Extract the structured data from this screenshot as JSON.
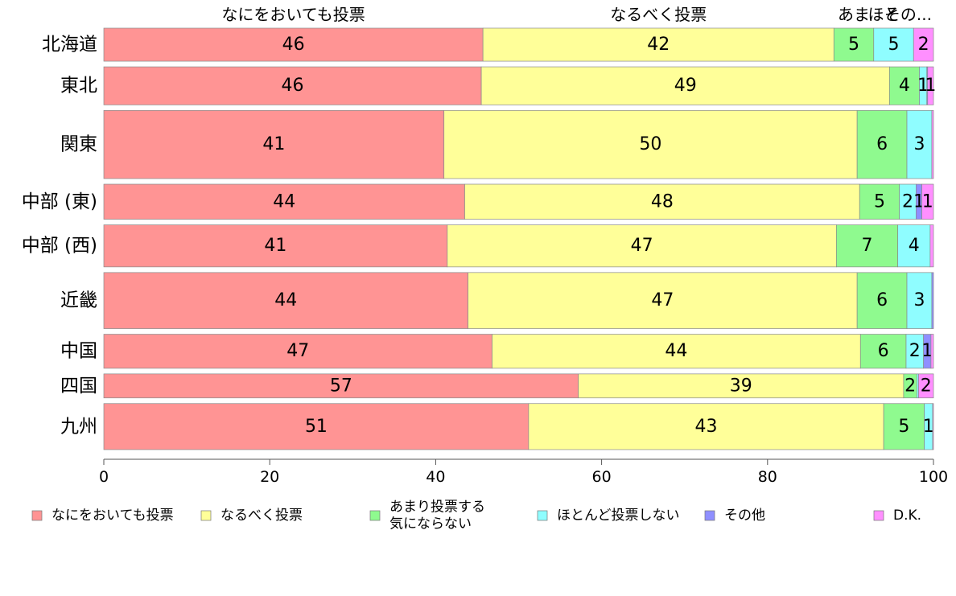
{
  "chart_data": {
    "type": "bar",
    "orientation": "horizontal",
    "stacked": true,
    "xlim": [
      0,
      100
    ],
    "xticks": [
      0,
      20,
      40,
      60,
      80,
      100
    ],
    "legend_position": "bottom",
    "categories": [
      "北海道",
      "東北",
      "関東",
      "中部 (東)",
      "中部 (西)",
      "近畿",
      "中国",
      "四国",
      "九州"
    ],
    "category_weights": [
      0.33,
      0.38,
      0.68,
      0.35,
      0.42,
      0.56,
      0.34,
      0.24,
      0.46
    ],
    "top_labels": [
      "なにをおいても投票",
      "なるべく投票",
      "あま",
      "ほと",
      "その..."
    ],
    "series": [
      {
        "name": "なにをおいても投票",
        "legend": [
          "なにをおいても投票"
        ],
        "color": "#ff9494",
        "values": [
          45.7,
          45.5,
          41.0,
          43.5,
          41.4,
          43.9,
          46.8,
          57.2,
          51.2
        ],
        "labels": [
          "46",
          "46",
          "41",
          "44",
          "41",
          "44",
          "47",
          "57",
          "51"
        ]
      },
      {
        "name": "なるべく投票",
        "legend": [
          "なるべく投票"
        ],
        "color": "#ffff99",
        "values": [
          42.3,
          49.2,
          49.8,
          47.6,
          46.9,
          46.9,
          44.4,
          39.2,
          42.8
        ],
        "labels": [
          "42",
          "49",
          "50",
          "48",
          "47",
          "47",
          "44",
          "39",
          "43"
        ]
      },
      {
        "name": "あまり投票する気にならない",
        "legend": [
          "あまり投票する",
          "気にならない"
        ],
        "color": "#8ffa8f",
        "values": [
          4.8,
          3.6,
          6.0,
          4.8,
          7.4,
          6.0,
          5.5,
          1.6,
          4.9
        ],
        "labels": [
          "5",
          "4",
          "6",
          "5",
          "7",
          "6",
          "6",
          "2",
          "5"
        ]
      },
      {
        "name": "ほとんど投票しない",
        "legend": [
          "ほとんど投票しない"
        ],
        "color": "#8ffdff",
        "values": [
          4.8,
          0.9,
          3.0,
          2.0,
          3.9,
          3.0,
          2.1,
          0.2,
          1.0
        ],
        "labels": [
          "5",
          "1",
          "3",
          "2",
          "4",
          "3",
          "2",
          "",
          "1"
        ]
      },
      {
        "name": "その他",
        "legend": [
          "その他"
        ],
        "color": "#8f8fff",
        "values": [
          0.0,
          0.1,
          0.0,
          0.7,
          0.0,
          0.2,
          0.9,
          0.0,
          0.0
        ],
        "labels": [
          "",
          "",
          "",
          "1",
          "",
          "",
          "1",
          "",
          ""
        ]
      },
      {
        "name": "D.K.",
        "legend": [
          "D.K."
        ],
        "color": "#ff8fff",
        "values": [
          2.4,
          0.7,
          0.2,
          1.4,
          0.4,
          0.0,
          0.3,
          1.8,
          0.1
        ],
        "labels": [
          "2",
          "1",
          "",
          "1",
          "",
          "",
          "",
          "2",
          ""
        ]
      }
    ]
  }
}
